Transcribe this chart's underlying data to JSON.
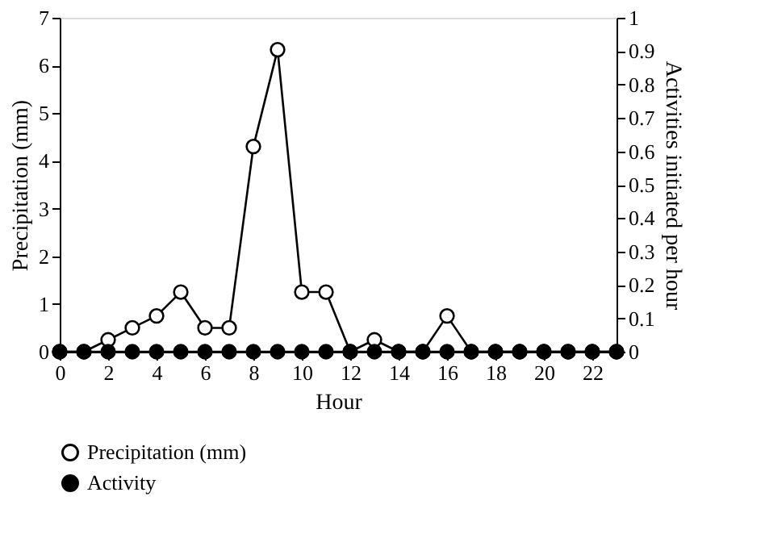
{
  "chart_data": {
    "type": "line",
    "xlabel": "Hour",
    "ylabel": "Precipitation (mm)",
    "y2label": "Activities initiated per hour",
    "x": [
      0,
      1,
      2,
      3,
      4,
      5,
      6,
      7,
      8,
      9,
      10,
      11,
      12,
      13,
      14,
      15,
      16,
      17,
      18,
      19,
      20,
      21,
      22,
      23
    ],
    "series": [
      {
        "name": "Precipitation (mm)",
        "color": "#000000",
        "values": [
          0,
          0,
          0.25,
          0.5,
          0.75,
          1.25,
          0.5,
          0.5,
          4.3,
          6.33,
          1.25,
          1.25,
          0,
          0.25,
          0,
          0,
          0.75,
          0,
          0,
          0,
          0,
          0,
          0,
          0
        ]
      },
      {
        "name": "Activity",
        "color": "#000000",
        "axis": "y2",
        "values": [
          0,
          0,
          0,
          0,
          0,
          0,
          0,
          0,
          0,
          0,
          0,
          0,
          0,
          0,
          0,
          0,
          0,
          0,
          0,
          0,
          0,
          0,
          0,
          0
        ]
      }
    ],
    "xlim": [
      0,
      23
    ],
    "xticks": [
      0,
      2,
      4,
      6,
      8,
      10,
      12,
      14,
      16,
      18,
      20,
      22
    ],
    "ylim": [
      0,
      7
    ],
    "yticks": [
      0,
      1,
      2,
      3,
      4,
      5,
      6,
      7
    ],
    "y2lim": [
      0,
      1
    ],
    "y2ticks": [
      0,
      0.1,
      0.2,
      0.3,
      0.4,
      0.5,
      0.6,
      0.7,
      0.8,
      0.9,
      1
    ],
    "marker": "circle",
    "line_style": "solid",
    "grid": false,
    "legend": "bottom left"
  }
}
